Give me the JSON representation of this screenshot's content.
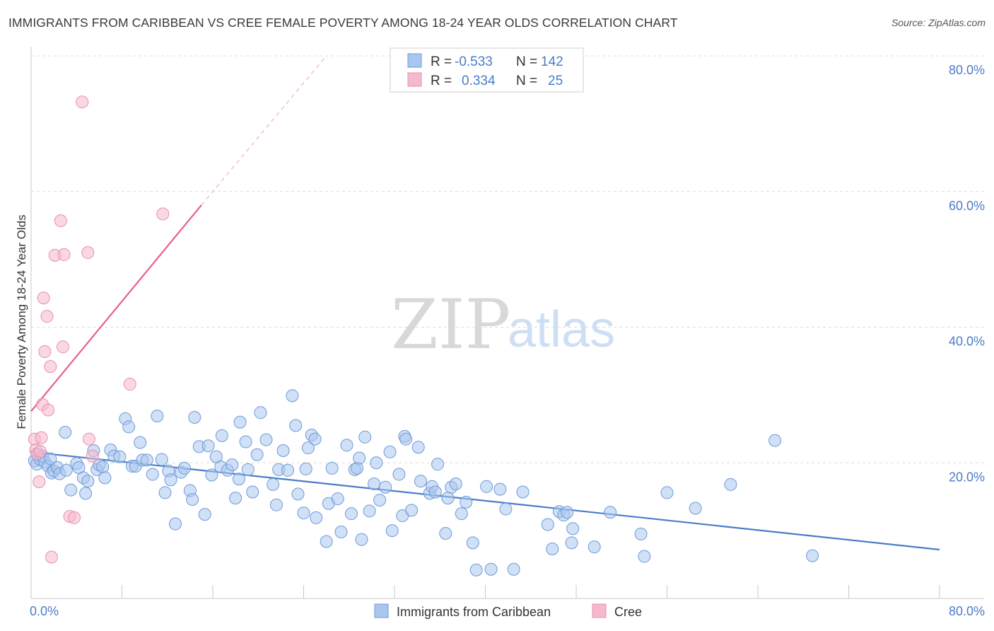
{
  "title": "IMMIGRANTS FROM CARIBBEAN VS CREE FEMALE POVERTY AMONG 18-24 YEAR OLDS CORRELATION CHART",
  "source": "Source: ZipAtlas.com",
  "watermark": {
    "zip": "ZIP",
    "atlas": "atlas"
  },
  "chart_data": {
    "type": "scatter",
    "ylabel": "Female Poverty Among 18-24 Year Olds",
    "xlim": [
      0,
      80
    ],
    "ylim": [
      0,
      80
    ],
    "x_tick_labels": {
      "left": "0.0%",
      "right": "80.0%"
    },
    "y_tick_labels": [
      {
        "value": 80,
        "label": "80.0%"
      },
      {
        "value": 60,
        "label": "60.0%"
      },
      {
        "value": 40,
        "label": "40.0%"
      },
      {
        "value": 20,
        "label": "20.0%"
      }
    ],
    "colors": {
      "blue": "#4a7cc9",
      "blue_fill": "#a9c6ee",
      "pink": "#e8608c",
      "pink_fill": "#f5b8cc"
    },
    "legend_stats": [
      {
        "r_label": "R =",
        "r": "-0.533",
        "n_label": "N =",
        "n": "142"
      },
      {
        "r_label": "R =",
        "r": "0.334",
        "n_label": "N =",
        "n": "25"
      }
    ],
    "series": [
      {
        "name": "Immigrants from Caribbean",
        "color": "blue",
        "trend": [
          [
            0,
            21.6
          ],
          [
            80,
            7.2
          ]
        ],
        "points": [
          [
            0.3,
            20.3
          ],
          [
            0.5,
            19.8
          ],
          [
            0.6,
            21.2
          ],
          [
            0.8,
            20.5
          ],
          [
            1.0,
            21.0
          ],
          [
            1.2,
            20.1
          ],
          [
            1.5,
            19.5
          ],
          [
            1.7,
            20.6
          ],
          [
            1.8,
            18.5
          ],
          [
            2.0,
            18.8
          ],
          [
            2.3,
            19.3
          ],
          [
            2.5,
            18.4
          ],
          [
            3.0,
            24.5
          ],
          [
            3.1,
            18.9
          ],
          [
            3.5,
            16.0
          ],
          [
            4.0,
            19.9
          ],
          [
            4.2,
            19.3
          ],
          [
            4.6,
            17.8
          ],
          [
            4.8,
            15.5
          ],
          [
            5.0,
            17.3
          ],
          [
            5.5,
            21.8
          ],
          [
            5.8,
            19.0
          ],
          [
            6.0,
            19.7
          ],
          [
            6.3,
            19.4
          ],
          [
            6.5,
            17.8
          ],
          [
            7.0,
            21.9
          ],
          [
            7.3,
            21.0
          ],
          [
            7.8,
            20.9
          ],
          [
            8.3,
            26.5
          ],
          [
            8.6,
            25.3
          ],
          [
            8.9,
            19.5
          ],
          [
            9.2,
            19.5
          ],
          [
            9.6,
            23.0
          ],
          [
            9.8,
            20.4
          ],
          [
            10.2,
            20.4
          ],
          [
            10.7,
            18.3
          ],
          [
            11.1,
            26.9
          ],
          [
            11.5,
            20.5
          ],
          [
            11.8,
            15.6
          ],
          [
            12.1,
            18.8
          ],
          [
            12.3,
            17.5
          ],
          [
            12.7,
            11.0
          ],
          [
            13.2,
            18.6
          ],
          [
            13.5,
            19.2
          ],
          [
            14.0,
            15.9
          ],
          [
            14.2,
            14.6
          ],
          [
            14.4,
            26.7
          ],
          [
            14.8,
            22.4
          ],
          [
            15.3,
            12.4
          ],
          [
            15.6,
            22.5
          ],
          [
            15.9,
            18.2
          ],
          [
            16.3,
            20.9
          ],
          [
            16.7,
            19.4
          ],
          [
            16.8,
            24.0
          ],
          [
            17.3,
            18.9
          ],
          [
            17.7,
            19.7
          ],
          [
            18.0,
            14.8
          ],
          [
            18.3,
            17.6
          ],
          [
            18.4,
            26.0
          ],
          [
            18.9,
            23.1
          ],
          [
            19.1,
            19.0
          ],
          [
            19.5,
            15.7
          ],
          [
            19.9,
            21.2
          ],
          [
            20.2,
            27.4
          ],
          [
            20.7,
            23.4
          ],
          [
            21.3,
            16.8
          ],
          [
            21.6,
            13.8
          ],
          [
            21.8,
            19.0
          ],
          [
            22.2,
            21.8
          ],
          [
            22.6,
            18.9
          ],
          [
            23.0,
            29.9
          ],
          [
            23.3,
            25.5
          ],
          [
            23.5,
            15.4
          ],
          [
            24.0,
            12.6
          ],
          [
            24.2,
            19.1
          ],
          [
            24.4,
            22.2
          ],
          [
            24.7,
            24.1
          ],
          [
            25.0,
            23.5
          ],
          [
            25.1,
            11.9
          ],
          [
            26.0,
            8.4
          ],
          [
            26.2,
            14.0
          ],
          [
            26.5,
            19.2
          ],
          [
            27.0,
            14.7
          ],
          [
            27.3,
            9.8
          ],
          [
            27.8,
            22.6
          ],
          [
            28.2,
            12.5
          ],
          [
            28.5,
            19.0
          ],
          [
            28.7,
            19.2
          ],
          [
            28.9,
            20.7
          ],
          [
            29.1,
            8.7
          ],
          [
            29.4,
            23.8
          ],
          [
            29.8,
            12.9
          ],
          [
            30.2,
            16.9
          ],
          [
            30.4,
            20.0
          ],
          [
            30.7,
            14.5
          ],
          [
            31.2,
            16.4
          ],
          [
            31.6,
            21.6
          ],
          [
            31.8,
            10.0
          ],
          [
            32.4,
            18.3
          ],
          [
            32.7,
            12.2
          ],
          [
            32.9,
            23.9
          ],
          [
            33.0,
            23.5
          ],
          [
            33.5,
            13.0
          ],
          [
            34.1,
            22.3
          ],
          [
            34.3,
            17.3
          ],
          [
            35.1,
            15.5
          ],
          [
            35.3,
            16.5
          ],
          [
            35.6,
            15.7
          ],
          [
            35.8,
            19.8
          ],
          [
            36.5,
            9.6
          ],
          [
            36.7,
            14.8
          ],
          [
            37.0,
            16.4
          ],
          [
            37.4,
            16.9
          ],
          [
            37.9,
            12.5
          ],
          [
            38.3,
            14.2
          ],
          [
            38.9,
            8.2
          ],
          [
            39.2,
            4.2
          ],
          [
            40.1,
            16.5
          ],
          [
            40.5,
            4.3
          ],
          [
            41.3,
            16.1
          ],
          [
            41.8,
            13.2
          ],
          [
            42.5,
            4.3
          ],
          [
            43.3,
            15.7
          ],
          [
            45.5,
            10.9
          ],
          [
            45.9,
            7.3
          ],
          [
            46.5,
            12.8
          ],
          [
            46.9,
            12.3
          ],
          [
            47.2,
            12.7
          ],
          [
            47.6,
            8.2
          ],
          [
            47.7,
            10.3
          ],
          [
            49.6,
            7.6
          ],
          [
            51.0,
            12.7
          ],
          [
            53.7,
            9.5
          ],
          [
            54.0,
            6.2
          ],
          [
            56.0,
            15.6
          ],
          [
            58.5,
            13.3
          ],
          [
            61.6,
            16.8
          ],
          [
            65.5,
            23.3
          ],
          [
            68.8,
            6.3
          ]
        ]
      },
      {
        "name": "Cree",
        "color": "pink",
        "trend": [
          [
            0,
            27.6
          ],
          [
            15,
            58.0
          ]
        ],
        "trend_dashed": [
          [
            15,
            58.0
          ],
          [
            26,
            80.0
          ]
        ],
        "points": [
          [
            0.3,
            23.5
          ],
          [
            0.4,
            21.9
          ],
          [
            0.5,
            21.3
          ],
          [
            0.7,
            17.2
          ],
          [
            0.8,
            21.7
          ],
          [
            0.9,
            23.7
          ],
          [
            1.0,
            28.6
          ],
          [
            1.1,
            44.3
          ],
          [
            1.2,
            36.4
          ],
          [
            1.4,
            41.6
          ],
          [
            1.5,
            27.8
          ],
          [
            1.7,
            34.2
          ],
          [
            2.1,
            50.6
          ],
          [
            2.6,
            55.7
          ],
          [
            2.8,
            37.1
          ],
          [
            2.9,
            50.7
          ],
          [
            3.4,
            12.1
          ],
          [
            3.8,
            11.9
          ],
          [
            1.8,
            6.1
          ],
          [
            4.5,
            73.2
          ],
          [
            5.0,
            51.0
          ],
          [
            5.1,
            23.5
          ],
          [
            5.4,
            21.0
          ],
          [
            8.7,
            31.6
          ],
          [
            11.6,
            56.7
          ]
        ]
      }
    ]
  },
  "legend": {
    "items": [
      "Immigrants from Caribbean",
      "Cree"
    ]
  }
}
